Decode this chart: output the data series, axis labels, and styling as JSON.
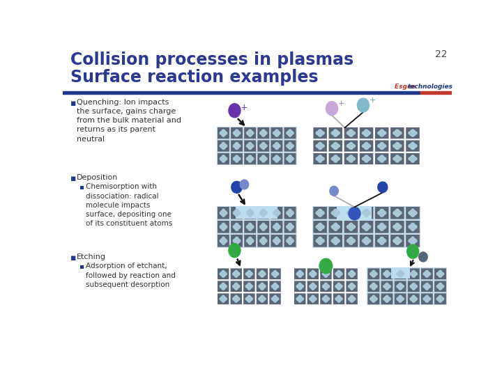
{
  "title_line1": "Collision processes in plasmas",
  "title_line2": "Surface reaction examples",
  "title_color": "#2B3990",
  "title_fontsize": 17,
  "slide_number": "22",
  "bg_color": "#FFFFFF",
  "header_bar_color": "#1F3887",
  "esgee_color": "#C0392B",
  "tech_color": "#1F3887",
  "bullet_color": "#1F3887",
  "body_text_color": "#333333",
  "bullet1_title": "Quenching: Ion impacts\nthe surface, gains charge\nfrom the bulk material and\nreturns as its parent\nneutral",
  "bullet2_title": "Deposition",
  "bullet2_sub": "Chemisorption with\ndissociation: radical\nmolecule impacts\nsurface, depositing one\nof its constituent atoms",
  "bullet3_title": "Etching",
  "bullet3_sub": "Adsorption of etchant,\nfollowed by reaction and\nsubsequent desorption",
  "surface_dark": "#5A6575",
  "surface_tint": "#C8DDE5",
  "dot_light": "#A8C8D8",
  "ion_purple": "#6633AA",
  "ion_lavender": "#C8A8D8",
  "ion_cyan": "#80BBCC",
  "dep_blue_dark": "#2244AA",
  "dep_blue_mid": "#7788CC",
  "dep_blue_sat": "#3355BB",
  "etch_green": "#33AA44",
  "etch_gray": "#556677",
  "arrow_black": "#111111",
  "arrow_gray": "#AAAAAA"
}
